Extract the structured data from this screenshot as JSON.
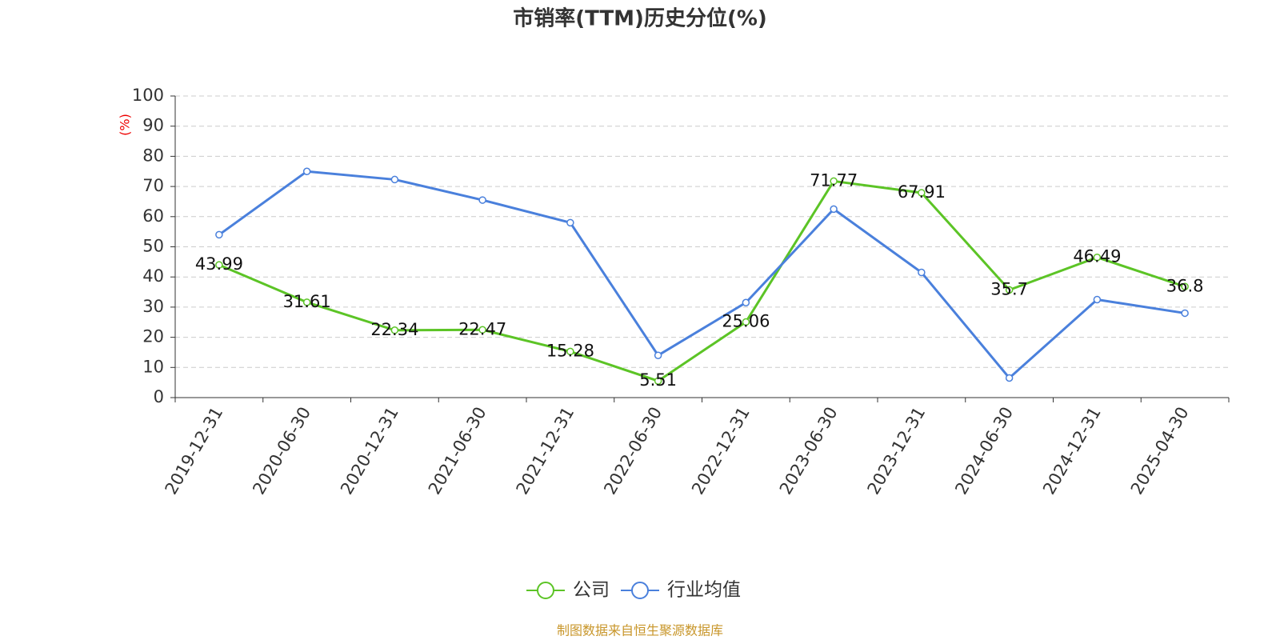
{
  "chart_data": {
    "type": "line",
    "title": "市销率(TTM)历史分位(%)",
    "y_label": "(%)",
    "categories": [
      "2019-12-31",
      "2020-06-30",
      "2020-12-31",
      "2021-06-30",
      "2021-12-31",
      "2022-06-30",
      "2022-12-31",
      "2023-06-30",
      "2023-12-31",
      "2024-06-30",
      "2024-12-31",
      "2025-04-30"
    ],
    "series": [
      {
        "name": "公司",
        "color": "#5cc426",
        "show_labels": true,
        "values": [
          43.99,
          31.61,
          22.34,
          22.47,
          15.28,
          5.51,
          25.06,
          71.77,
          67.91,
          35.7,
          46.49,
          36.8
        ]
      },
      {
        "name": "行业均值",
        "color": "#4a80dc",
        "show_labels": false,
        "values": [
          54,
          75,
          72.3,
          65.5,
          58,
          14,
          31.5,
          62.5,
          41.5,
          6.5,
          32.5,
          28
        ]
      }
    ],
    "ylim": [
      0,
      100
    ],
    "yticks": [
      0,
      10,
      20,
      30,
      40,
      50,
      60,
      70,
      80,
      90,
      100
    ],
    "grid": true,
    "legend": "bottom",
    "source": "制图数据来自恒生聚源数据库"
  }
}
